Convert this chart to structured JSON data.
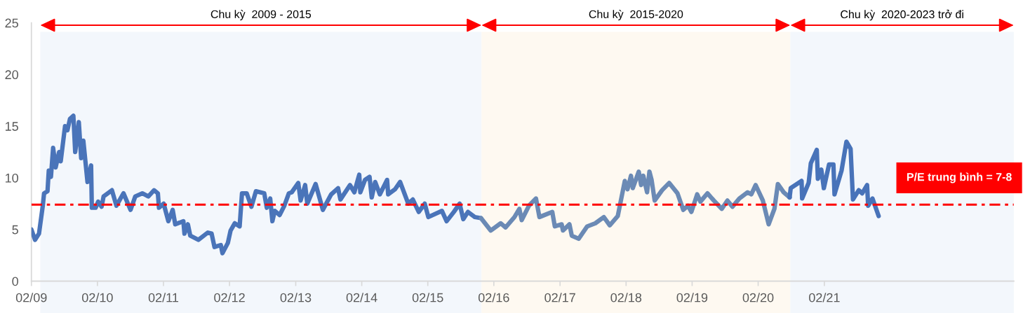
{
  "chart_data": {
    "type": "line",
    "xlim": [
      "2009-02-01",
      "2023-12-15"
    ],
    "ylim": [
      0,
      25
    ],
    "xticks": [
      {
        "value": "2009-02-01",
        "label": "02/09"
      },
      {
        "value": "2010-02-01",
        "label": "02/10"
      },
      {
        "value": "2011-02-01",
        "label": "02/11"
      },
      {
        "value": "2012-02-01",
        "label": "02/12"
      },
      {
        "value": "2013-02-01",
        "label": "02/13"
      },
      {
        "value": "2014-02-01",
        "label": "02/14"
      },
      {
        "value": "2015-02-01",
        "label": "02/15"
      },
      {
        "value": "2016-02-01",
        "label": "02/16"
      },
      {
        "value": "2017-02-01",
        "label": "02/17"
      },
      {
        "value": "2018-02-01",
        "label": "02/18"
      },
      {
        "value": "2019-02-01",
        "label": "02/19"
      },
      {
        "value": "2020-02-01",
        "label": "02/20"
      },
      {
        "value": "2021-02-01",
        "label": "02/21"
      }
    ],
    "yticks": [
      0,
      5,
      10,
      15,
      20,
      25
    ],
    "bands": [
      {
        "axis": "x",
        "from": "2009-03-22",
        "to": "2015-11-25",
        "label": "Chu kỳ  2009 - 2015",
        "color": "#f3f7fc"
      },
      {
        "axis": "x",
        "from": "2015-11-25",
        "to": "2020-07-28",
        "label": "Chu kỳ  2015-2020",
        "color": "#fef9f1"
      },
      {
        "axis": "x",
        "from": "2020-07-28",
        "to": "2023-12-15",
        "label": "Chu kỳ  2020-2023 trở đi",
        "color": "#f3f7fc"
      }
    ],
    "ref_lines": [
      {
        "axis": "y",
        "value": 7.4,
        "label": "P/E trung bình = 7-8",
        "color": "#ff0000",
        "line_style": "dashdot"
      }
    ],
    "series": [
      {
        "color": "#4a74b9",
        "x": [
          "2009-02-01",
          "2009-02-21",
          "2009-03-15",
          "2009-04-05",
          "2009-04-12",
          "2009-05-01",
          "2009-05-08",
          "2009-05-20",
          "2009-06-01",
          "2009-06-15",
          "2009-07-04",
          "2009-07-13",
          "2009-08-06",
          "2009-08-19",
          "2009-09-02",
          "2009-09-21",
          "2009-10-01",
          "2009-10-21",
          "2009-11-03",
          "2009-11-15",
          "2009-12-08",
          "2009-12-28",
          "2010-01-01",
          "2010-01-22",
          "2010-02-05",
          "2010-02-24",
          "2010-03-07",
          "2010-04-22",
          "2010-05-17",
          "2010-06-25",
          "2010-08-03",
          "2010-08-29",
          "2010-10-07",
          "2010-11-09",
          "2010-12-11",
          "2011-01-01",
          "2011-01-07",
          "2011-02-02",
          "2011-02-28",
          "2011-03-24",
          "2011-04-07",
          "2011-05-22",
          "2011-05-28",
          "2011-06-16",
          "2011-06-29",
          "2011-08-13",
          "2011-10-04",
          "2011-10-25",
          "2011-11-10",
          "2011-12-15",
          "2011-12-24",
          "2012-01-23",
          "2012-02-07",
          "2012-03-01",
          "2012-03-28",
          "2012-04-10",
          "2012-05-06",
          "2012-06-01",
          "2012-06-26",
          "2012-08-11",
          "2012-08-25",
          "2012-09-13",
          "2012-09-25",
          "2012-10-08",
          "2012-11-04",
          "2012-11-30",
          "2012-12-25",
          "2013-01-10",
          "2013-02-15",
          "2013-02-28",
          "2013-03-25",
          "2013-04-06",
          "2013-05-22",
          "2013-07-01",
          "2013-08-16",
          "2013-09-23",
          "2013-10-06",
          "2013-11-28",
          "2013-12-22",
          "2014-01-18",
          "2014-01-24",
          "2014-02-19",
          "2014-03-16",
          "2014-03-28",
          "2014-04-16",
          "2014-05-12",
          "2014-06-21",
          "2014-06-27",
          "2014-08-04",
          "2014-09-01",
          "2014-10-16",
          "2014-11-10",
          "2014-12-13",
          "2015-01-15",
          "2015-02-04",
          "2015-04-20",
          "2015-05-16",
          "2015-06-25",
          "2015-07-27",
          "2015-08-16",
          "2015-09-11",
          "2015-10-19",
          "2015-11-22"
        ],
        "values": [
          5.0,
          4.0,
          4.6,
          7.3,
          8.5,
          8.7,
          10.7,
          10.1,
          12.9,
          11.0,
          12.5,
          11.6,
          15.0,
          14.6,
          15.7,
          16.0,
          12.5,
          15.4,
          11.9,
          13.6,
          9.6,
          11.2,
          7.1,
          7.1,
          7.7,
          7.2,
          8.2,
          8.8,
          7.3,
          8.5,
          6.9,
          8.2,
          8.5,
          8.2,
          8.8,
          8.5,
          7.1,
          7.5,
          5.8,
          6.9,
          5.5,
          5.8,
          4.6,
          5.5,
          4.4,
          4.0,
          4.7,
          4.6,
          3.3,
          3.5,
          2.7,
          3.7,
          4.9,
          5.6,
          5.3,
          8.5,
          8.5,
          7.2,
          8.7,
          8.5,
          7.1,
          8.0,
          5.8,
          6.8,
          6.4,
          7.3,
          8.5,
          8.6,
          9.5,
          7.8,
          9.3,
          7.5,
          9.4,
          6.9,
          8.4,
          9.0,
          7.9,
          9.3,
          8.6,
          10.3,
          8.6,
          9.8,
          10.1,
          8.1,
          9.6,
          8.4,
          9.8,
          8.4,
          8.9,
          9.6,
          7.5,
          7.9,
          6.7,
          7.5,
          6.2,
          6.8,
          5.8,
          6.7,
          7.5,
          6.0,
          6.7,
          6.2,
          6.1
        ]
      },
      {
        "color": "#6b8ab5",
        "x": [
          "2015-11-22",
          "2016-01-15",
          "2016-03-10",
          "2016-04-06",
          "2016-05-25",
          "2016-06-21",
          "2016-07-04",
          "2016-08-13",
          "2016-09-21",
          "2016-10-10",
          "2016-12-20",
          "2017-01-03",
          "2017-02-10",
          "2017-02-17",
          "2017-03-25",
          "2017-04-07",
          "2017-05-15",
          "2017-07-01",
          "2017-08-15",
          "2017-10-01",
          "2017-11-03",
          "2017-12-17",
          "2018-01-25",
          "2018-02-09",
          "2018-02-28",
          "2018-03-10",
          "2018-04-12",
          "2018-04-25",
          "2018-05-07",
          "2018-05-28",
          "2018-06-10",
          "2018-06-22",
          "2018-07-09",
          "2018-08-19",
          "2018-09-27",
          "2018-11-12",
          "2018-12-14",
          "2019-01-09",
          "2019-01-28",
          "2019-03-01",
          "2019-03-19",
          "2019-04-27",
          "2019-06-01",
          "2019-07-15",
          "2019-08-15",
          "2019-09-12",
          "2019-10-20",
          "2019-12-05",
          "2019-12-25",
          "2020-01-18",
          "2020-02-27",
          "2020-03-30",
          "2020-05-01",
          "2020-05-20",
          "2020-06-21",
          "2020-07-24"
        ],
        "values": [
          6.1,
          4.9,
          5.6,
          5.2,
          6.2,
          7.0,
          5.9,
          7.3,
          8.0,
          6.2,
          6.7,
          5.3,
          5.5,
          4.9,
          5.5,
          4.4,
          4.1,
          5.3,
          5.6,
          6.2,
          5.4,
          6.3,
          9.7,
          8.9,
          10.2,
          9.0,
          10.6,
          9.3,
          10.2,
          8.6,
          10.6,
          9.8,
          7.8,
          8.8,
          9.5,
          8.5,
          6.9,
          7.3,
          6.7,
          8.4,
          7.7,
          8.5,
          7.8,
          7.0,
          7.8,
          7.2,
          8.0,
          8.6,
          8.4,
          9.3,
          7.8,
          5.5,
          7.0,
          9.4,
          8.6,
          8.1
        ]
      },
      {
        "color": "#4873b9",
        "x": [
          "2020-07-24",
          "2020-07-30",
          "2020-09-28",
          "2020-10-01",
          "2020-11-06",
          "2020-11-18",
          "2020-12-21",
          "2020-12-27",
          "2021-01-15",
          "2021-01-29",
          "2021-02-27",
          "2021-03-23",
          "2021-03-29",
          "2021-05-07",
          "2021-06-03",
          "2021-06-26",
          "2021-07-09",
          "2021-08-10",
          "2021-08-29",
          "2021-09-25",
          "2021-10-01",
          "2021-10-25",
          "2021-11-28"
        ],
        "values": [
          8.1,
          9.0,
          9.7,
          8.0,
          9.5,
          11.4,
          12.7,
          9.9,
          10.8,
          9.0,
          11.3,
          11.3,
          8.4,
          10.7,
          13.5,
          12.8,
          7.9,
          8.8,
          8.5,
          9.3,
          7.3,
          8.0,
          6.3
        ]
      }
    ]
  }
}
